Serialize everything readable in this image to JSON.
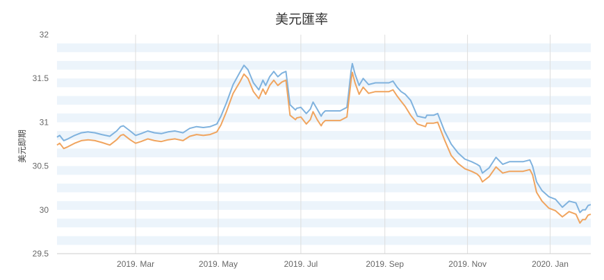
{
  "chart_data": {
    "type": "line",
    "title": "美元匯率",
    "xlabel": "",
    "ylabel": "美元即期",
    "ylim": [
      29.5,
      32
    ],
    "xlim": [
      "2019-01-02",
      "2020-01-31"
    ],
    "yticks": [
      {
        "value": 29.5,
        "label": "29.5"
      },
      {
        "value": 30,
        "label": "30"
      },
      {
        "value": 30.5,
        "label": "30.5"
      },
      {
        "value": 31,
        "label": "31"
      },
      {
        "value": 31.5,
        "label": "31.5"
      },
      {
        "value": 32,
        "label": "32"
      }
    ],
    "xticks": [
      {
        "date": "2019-03-01",
        "label": "2019. Mar"
      },
      {
        "date": "2019-05-01",
        "label": "2019. May"
      },
      {
        "date": "2019-07-01",
        "label": "2019. Jul"
      },
      {
        "date": "2019-09-01",
        "label": "2019. Sep"
      },
      {
        "date": "2019-11-01",
        "label": "2019. Nov"
      },
      {
        "date": "2020-01-01",
        "label": "2020. Jan"
      }
    ],
    "grid": {
      "alternating_bands": true,
      "vertical_lines": true
    },
    "colors": {
      "upper": "#7fb2de",
      "lower": "#f0a45e",
      "band": "#ecf4fb",
      "gridline": "#dddddd"
    },
    "series": [
      {
        "x": [
          "2019-01-02",
          "2019-01-04",
          "2019-01-07",
          "2019-01-10",
          "2019-01-15",
          "2019-01-20",
          "2019-01-25",
          "2019-01-30",
          "2019-02-04",
          "2019-02-10",
          "2019-02-15",
          "2019-02-18",
          "2019-02-20",
          "2019-02-25",
          "2019-03-01",
          "2019-03-05",
          "2019-03-10",
          "2019-03-15",
          "2019-03-20",
          "2019-03-25",
          "2019-03-30",
          "2019-04-05",
          "2019-04-10",
          "2019-04-15",
          "2019-04-20",
          "2019-04-25",
          "2019-04-30",
          "2019-05-03",
          "2019-05-07",
          "2019-05-12",
          "2019-05-17",
          "2019-05-20",
          "2019-05-23",
          "2019-05-27",
          "2019-05-31",
          "2019-06-03",
          "2019-06-05",
          "2019-06-08",
          "2019-06-11",
          "2019-06-14",
          "2019-06-17",
          "2019-06-20",
          "2019-06-23",
          "2019-06-27",
          "2019-06-28",
          "2019-07-01",
          "2019-07-05",
          "2019-07-08",
          "2019-07-10",
          "2019-07-13",
          "2019-07-16",
          "2019-07-17",
          "2019-07-19",
          "2019-07-24",
          "2019-07-30",
          "2019-08-04",
          "2019-08-05",
          "2019-08-07",
          "2019-08-08",
          "2019-08-10",
          "2019-08-13",
          "2019-08-16",
          "2019-08-20",
          "2019-08-25",
          "2019-08-30",
          "2019-09-04",
          "2019-09-07",
          "2019-09-10",
          "2019-09-13",
          "2019-09-16",
          "2019-09-20",
          "2019-09-25",
          "2019-10-01",
          "2019-10-02",
          "2019-10-07",
          "2019-10-10",
          "2019-10-15",
          "2019-10-20",
          "2019-10-25",
          "2019-10-30",
          "2019-11-04",
          "2019-11-08",
          "2019-11-10",
          "2019-11-12",
          "2019-11-17",
          "2019-11-22",
          "2019-11-27",
          "2019-12-02",
          "2019-12-07",
          "2019-12-12",
          "2019-12-17",
          "2019-12-19",
          "2019-12-22",
          "2019-12-26",
          "2019-12-31",
          "2020-01-05",
          "2020-01-10",
          "2020-01-15",
          "2020-01-20",
          "2020-01-23",
          "2020-01-25",
          "2020-01-27",
          "2020-01-29",
          "2020-01-31"
        ],
        "values": [
          30.83,
          30.85,
          30.79,
          30.81,
          30.85,
          30.88,
          30.89,
          30.88,
          30.86,
          30.84,
          30.9,
          30.95,
          30.96,
          30.9,
          30.85,
          30.87,
          30.9,
          30.88,
          30.87,
          30.89,
          30.9,
          30.88,
          30.93,
          30.95,
          30.94,
          30.95,
          30.98,
          31.07,
          31.22,
          31.43,
          31.57,
          31.65,
          31.6,
          31.45,
          31.37,
          31.48,
          31.42,
          31.52,
          31.58,
          31.52,
          31.56,
          31.58,
          31.2,
          31.14,
          31.16,
          31.17,
          31.1,
          31.15,
          31.23,
          31.15,
          31.07,
          31.1,
          31.13,
          31.13,
          31.13,
          31.17,
          31.3,
          31.58,
          31.67,
          31.55,
          31.42,
          31.5,
          31.43,
          31.45,
          31.45,
          31.45,
          31.47,
          31.4,
          31.35,
          31.32,
          31.25,
          31.07,
          31.05,
          31.08,
          31.08,
          31.1,
          30.9,
          30.75,
          30.65,
          30.58,
          30.55,
          30.52,
          30.5,
          30.42,
          30.48,
          30.6,
          30.52,
          30.55,
          30.55,
          30.55,
          30.57,
          30.5,
          30.32,
          30.22,
          30.15,
          30.12,
          30.03,
          30.1,
          30.08,
          29.97,
          30,
          30,
          30.05,
          30.06
        ]
      },
      {
        "x": [
          "2019-01-02",
          "2019-01-04",
          "2019-01-07",
          "2019-01-10",
          "2019-01-15",
          "2019-01-20",
          "2019-01-25",
          "2019-01-30",
          "2019-02-04",
          "2019-02-10",
          "2019-02-15",
          "2019-02-18",
          "2019-02-20",
          "2019-02-25",
          "2019-03-01",
          "2019-03-05",
          "2019-03-10",
          "2019-03-15",
          "2019-03-20",
          "2019-03-25",
          "2019-03-30",
          "2019-04-05",
          "2019-04-10",
          "2019-04-15",
          "2019-04-20",
          "2019-04-25",
          "2019-04-30",
          "2019-05-03",
          "2019-05-07",
          "2019-05-12",
          "2019-05-17",
          "2019-05-20",
          "2019-05-23",
          "2019-05-27",
          "2019-05-31",
          "2019-06-03",
          "2019-06-05",
          "2019-06-08",
          "2019-06-11",
          "2019-06-14",
          "2019-06-17",
          "2019-06-20",
          "2019-06-23",
          "2019-06-27",
          "2019-06-28",
          "2019-07-01",
          "2019-07-05",
          "2019-07-08",
          "2019-07-10",
          "2019-07-13",
          "2019-07-16",
          "2019-07-17",
          "2019-07-19",
          "2019-07-24",
          "2019-07-30",
          "2019-08-04",
          "2019-08-05",
          "2019-08-07",
          "2019-08-08",
          "2019-08-10",
          "2019-08-13",
          "2019-08-16",
          "2019-08-20",
          "2019-08-25",
          "2019-08-30",
          "2019-09-04",
          "2019-09-07",
          "2019-09-10",
          "2019-09-13",
          "2019-09-16",
          "2019-09-20",
          "2019-09-25",
          "2019-10-01",
          "2019-10-02",
          "2019-10-07",
          "2019-10-10",
          "2019-10-15",
          "2019-10-20",
          "2019-10-25",
          "2019-10-30",
          "2019-11-04",
          "2019-11-08",
          "2019-11-10",
          "2019-11-12",
          "2019-11-17",
          "2019-11-22",
          "2019-11-27",
          "2019-12-02",
          "2019-12-07",
          "2019-12-12",
          "2019-12-17",
          "2019-12-19",
          "2019-12-22",
          "2019-12-26",
          "2019-12-31",
          "2020-01-05",
          "2020-01-10",
          "2020-01-15",
          "2020-01-20",
          "2020-01-23",
          "2020-01-25",
          "2020-01-27",
          "2020-01-29",
          "2020-01-31"
        ],
        "values": [
          30.74,
          30.76,
          30.7,
          30.72,
          30.76,
          30.79,
          30.8,
          30.79,
          30.77,
          30.74,
          30.8,
          30.85,
          30.86,
          30.8,
          30.76,
          30.78,
          30.81,
          30.79,
          30.78,
          30.8,
          30.81,
          30.79,
          30.84,
          30.86,
          30.85,
          30.86,
          30.89,
          30.97,
          31.12,
          31.33,
          31.46,
          31.55,
          31.5,
          31.35,
          31.27,
          31.38,
          31.32,
          31.42,
          31.48,
          31.42,
          31.46,
          31.48,
          31.08,
          31.03,
          31.05,
          31.06,
          30.98,
          31.03,
          31.12,
          31.03,
          30.96,
          30.99,
          31.02,
          31.02,
          31.02,
          31.06,
          31.2,
          31.47,
          31.57,
          31.45,
          31.32,
          31.4,
          31.33,
          31.35,
          31.35,
          31.35,
          31.37,
          31.3,
          31.24,
          31.18,
          31.08,
          30.98,
          30.95,
          30.99,
          30.99,
          31,
          30.8,
          30.62,
          30.53,
          30.47,
          30.44,
          30.41,
          30.38,
          30.32,
          30.38,
          30.49,
          30.42,
          30.44,
          30.44,
          30.44,
          30.46,
          30.4,
          30.2,
          30.1,
          30.02,
          29.99,
          29.92,
          29.98,
          29.95,
          29.85,
          29.89,
          29.89,
          29.94,
          29.95
        ]
      }
    ]
  }
}
